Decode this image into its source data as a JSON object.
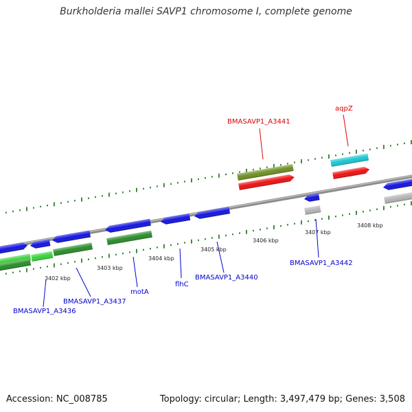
{
  "title": "Burkholderia mallei SAVP1 chromosome I, complete genome",
  "footer": {
    "accession": "Accession: NC_008785",
    "summary": "Topology: circular; Length: 3,497,479 bp; Genes: 3,508"
  },
  "colors": {
    "backbone": "#8c8c8c",
    "dots": "#2e7d2e",
    "forward_label": "#dd0000",
    "reverse_label": "#0000cc",
    "blue_gene": "#1414e0",
    "red_gene": "#ee1111",
    "olive_gene": "#6e8f22",
    "cyan_gene": "#19c6d2",
    "gray_gene": "#b4b4b4",
    "green_gene": "#2a8c2a",
    "lightgreen_gene": "#39d239"
  },
  "scale": {
    "tick_labels": [
      "3402 kbp",
      "3403 kbp",
      "3404 kbp",
      "3405 kbp",
      "3406 kbp",
      "3407 kbp",
      "3408 kbp"
    ]
  },
  "gene_labels": {
    "forward": [
      "BMASAVP1_A3441",
      "aqpZ"
    ],
    "reverse": [
      "BMASAVP1_A3436",
      "BMASAVP1_A3437",
      "motA",
      "flhC",
      "BMASAVP1_A3440",
      "BMASAVP1_A3442"
    ]
  }
}
